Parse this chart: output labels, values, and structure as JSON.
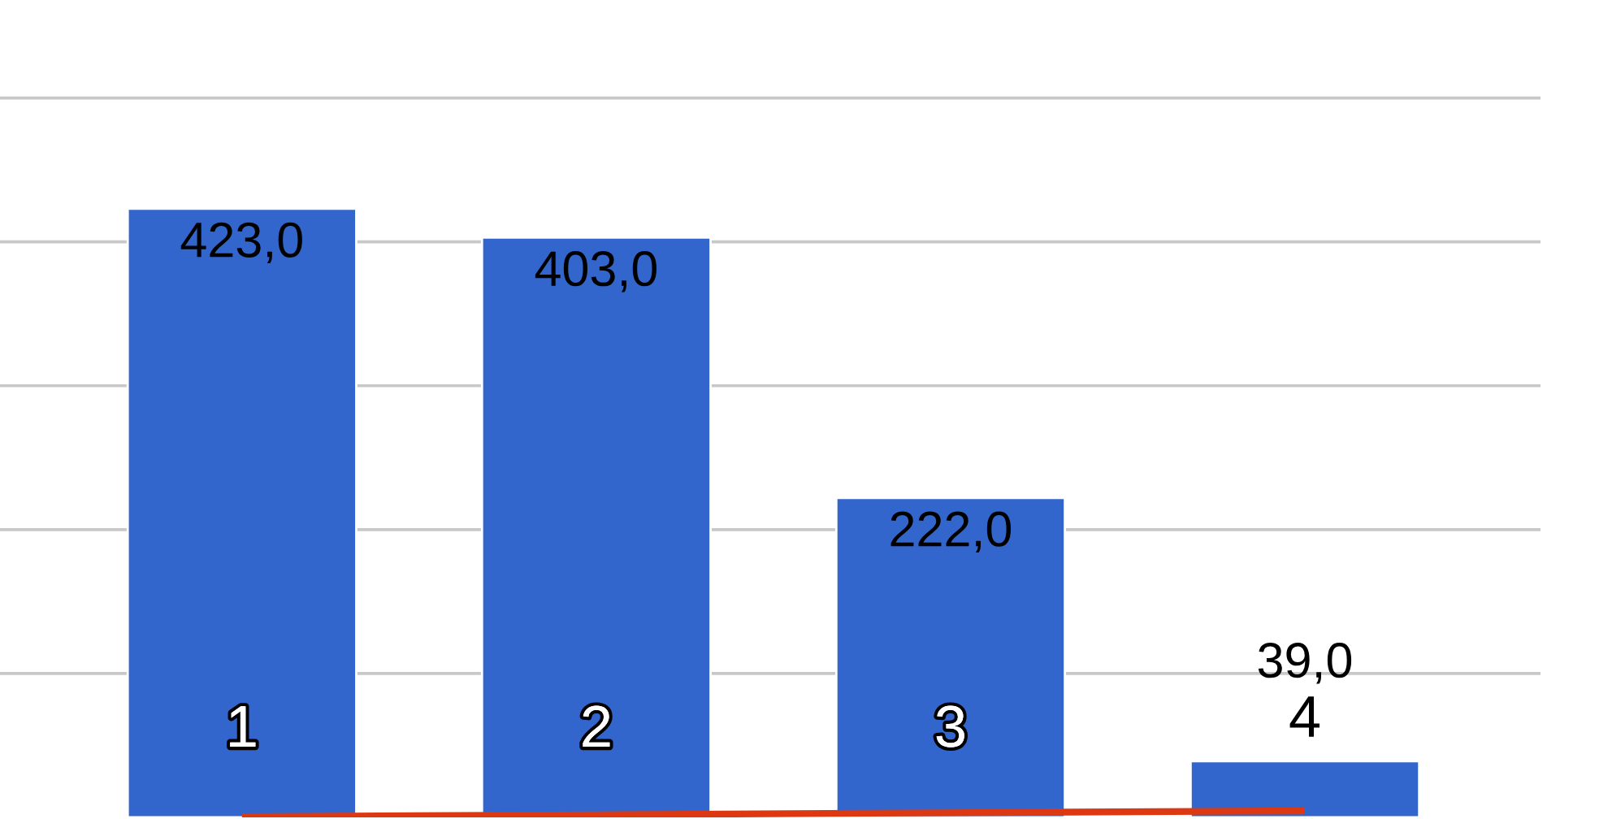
{
  "chart_data": {
    "type": "bar",
    "categories": [
      "1",
      "2",
      "3",
      "4"
    ],
    "series": [
      {
        "color": "#3366cc",
        "values": [
          423,
          403,
          222,
          39
        ],
        "value_labels": [
          "423,0",
          "403,0",
          "222,0",
          "39,0"
        ]
      },
      {
        "type": "line",
        "color": "#dc3912",
        "values": [
          0.5,
          1.8,
          3.2,
          4.5
        ]
      }
    ],
    "yticks": [
      {
        "value": 100,
        "label": null
      },
      {
        "value": 200,
        "label": null
      },
      {
        "value": 300,
        "label": null
      },
      {
        "value": 400,
        "label": null
      },
      {
        "value": 500,
        "label": null
      }
    ],
    "grid": "y"
  }
}
